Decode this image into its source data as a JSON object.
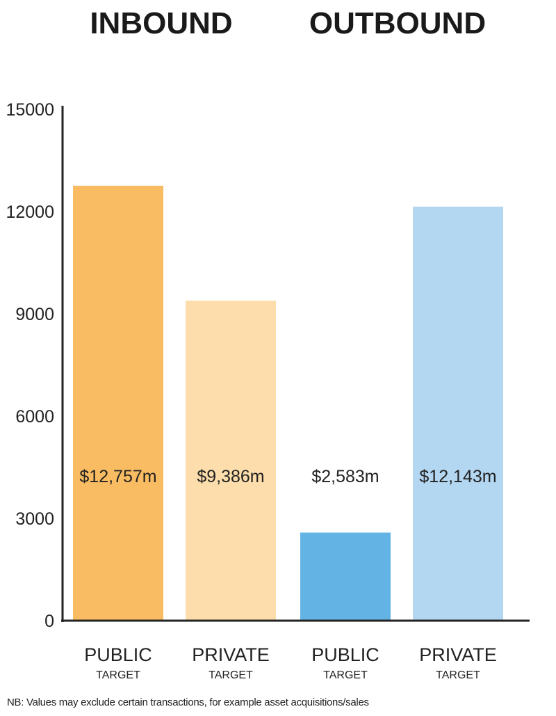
{
  "chart_data": {
    "type": "bar",
    "group_titles": [
      "INBOUND",
      "OUTBOUND"
    ],
    "categories": [
      {
        "main": "PUBLIC",
        "sub": "TARGET",
        "group": "INBOUND"
      },
      {
        "main": "PRIVATE",
        "sub": "TARGET",
        "group": "INBOUND"
      },
      {
        "main": "PUBLIC",
        "sub": "TARGET",
        "group": "OUTBOUND"
      },
      {
        "main": "PRIVATE",
        "sub": "TARGET",
        "group": "OUTBOUND"
      }
    ],
    "values": [
      12757,
      9386,
      2583,
      12143
    ],
    "data_labels": [
      "$12,757m",
      "$9,386m",
      "$2,583m",
      "$12,143m"
    ],
    "colors": [
      "#F9BC62",
      "#FCDDAB",
      "#63B4E4",
      "#B3D6F1"
    ],
    "yticks": [
      "0",
      "3000",
      "6000",
      "9000",
      "12000",
      "15000"
    ],
    "ylim": [
      0,
      15000
    ],
    "grid": false,
    "legend": "none"
  },
  "footnote": "NB: Values may exclude certain transactions, for example asset acquisitions/sales"
}
